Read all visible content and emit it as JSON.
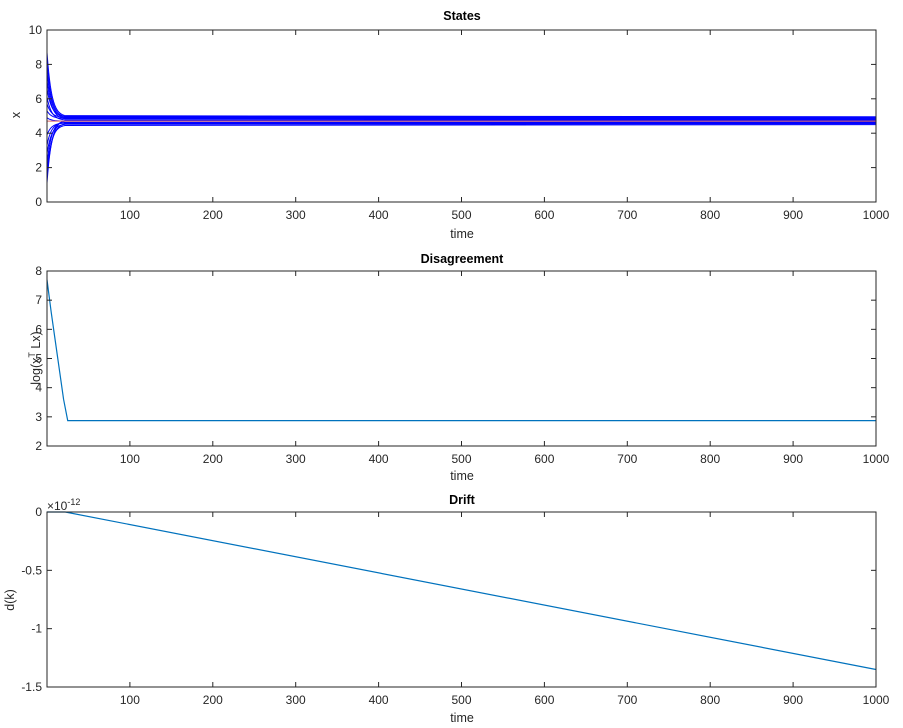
{
  "colors": {
    "states_lines": "#0000ff",
    "states_avg": "#e06666",
    "line_default": "#0072bd",
    "axis": "#262626"
  },
  "chart_data": [
    {
      "type": "line",
      "title": "States",
      "xlabel": "time",
      "ylabel": "x",
      "xlim": [
        0,
        1000
      ],
      "ylim": [
        0,
        10
      ],
      "xticks": [
        "100",
        "200",
        "300",
        "400",
        "500",
        "600",
        "700",
        "800",
        "900",
        "1000"
      ],
      "yticks": [
        "0",
        "2",
        "4",
        "6",
        "8",
        "10"
      ],
      "yticks_values": [
        0,
        2,
        4,
        6,
        8,
        10
      ],
      "settle_time": 22,
      "series": [
        {
          "start": 8.7,
          "final": 4.95
        },
        {
          "start": 8.1,
          "final": 4.9
        },
        {
          "start": 7.6,
          "final": 4.85
        },
        {
          "start": 7.1,
          "final": 4.8
        },
        {
          "start": 6.6,
          "final": 4.95
        },
        {
          "start": 6.1,
          "final": 4.75
        },
        {
          "start": 5.7,
          "final": 4.9
        },
        {
          "start": 5.3,
          "final": 4.85
        },
        {
          "start": 4.9,
          "final": 4.7
        },
        {
          "start": 3.9,
          "final": 4.6
        },
        {
          "start": 3.3,
          "final": 4.65
        },
        {
          "start": 2.8,
          "final": 4.55
        },
        {
          "start": 2.2,
          "final": 4.75
        },
        {
          "start": 1.8,
          "final": 4.5
        },
        {
          "start": 1.4,
          "final": 4.6
        },
        {
          "start": 1.1,
          "final": 4.8
        }
      ],
      "average": 4.7
    },
    {
      "type": "line",
      "title": "Disagreement",
      "xlabel": "time",
      "ylabel": "log(x",
      "ylabel_sup": "T",
      "ylabel_tail": " Lx)",
      "xlim": [
        0,
        1000
      ],
      "ylim": [
        2,
        8
      ],
      "xticks": [
        "100",
        "200",
        "300",
        "400",
        "500",
        "600",
        "700",
        "800",
        "900",
        "1000"
      ],
      "yticks": [
        "2",
        "3",
        "4",
        "5",
        "6",
        "7",
        "8"
      ],
      "yticks_values": [
        2,
        3,
        4,
        5,
        6,
        7,
        8
      ],
      "x": [
        0,
        5,
        10,
        15,
        20,
        25,
        1000
      ],
      "y": [
        7.7,
        6.6,
        5.6,
        4.6,
        3.6,
        2.87,
        2.87
      ]
    },
    {
      "type": "line",
      "title": "Drift",
      "xlabel": "time",
      "ylabel": "d(k)",
      "exponent": "-12",
      "xlim": [
        0,
        1000
      ],
      "ylim": [
        -1.5,
        0
      ],
      "xticks": [
        "100",
        "200",
        "300",
        "400",
        "500",
        "600",
        "700",
        "800",
        "900",
        "1000"
      ],
      "yticks": [
        "0",
        "-0.5",
        "-1",
        "-1.5"
      ],
      "yticks_values": [
        0,
        -0.5,
        -1,
        -1.5
      ],
      "x": [
        0,
        22,
        1000
      ],
      "y": [
        0,
        0,
        -1.35
      ]
    }
  ]
}
